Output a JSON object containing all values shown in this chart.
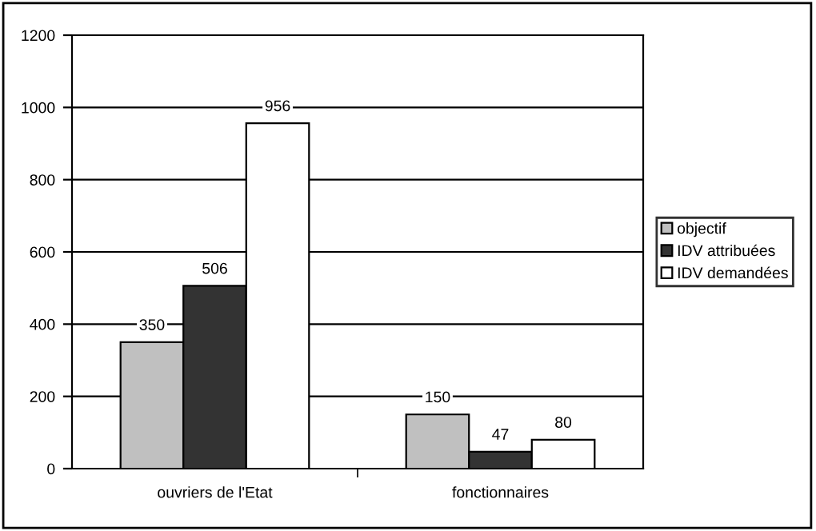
{
  "chart_data": {
    "type": "bar",
    "categories": [
      "ouvriers de l'Etat",
      "fonctionnaires"
    ],
    "series": [
      {
        "name": "objectif",
        "color": "#c0c0c0",
        "values": [
          350,
          150
        ]
      },
      {
        "name": "IDV attribuées",
        "color": "#333333",
        "values": [
          506,
          47
        ]
      },
      {
        "name": "IDV demandées",
        "color": "#ffffff",
        "values": [
          956,
          80
        ]
      }
    ],
    "ylim": [
      0,
      1200
    ],
    "yticks": [
      0,
      200,
      400,
      600,
      800,
      1000,
      1200
    ],
    "grid": "y",
    "legend": "right",
    "data_labels": true
  }
}
